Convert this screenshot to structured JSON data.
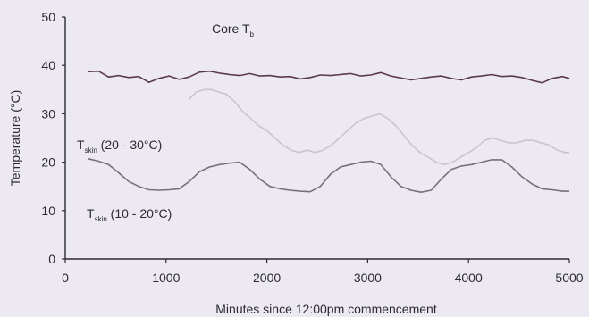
{
  "chart_data": {
    "type": "line",
    "xlabel": "Minutes since 12:00pm commencement",
    "ylabel": "Temperature (°C)",
    "xlim": [
      0,
      5000
    ],
    "ylim": [
      0,
      50
    ],
    "x_ticks": [
      "0",
      "1000",
      "2000",
      "3000",
      "4000",
      "5000"
    ],
    "y_ticks": [
      "0",
      "10",
      "20",
      "30",
      "40",
      "50"
    ],
    "grid": false,
    "legend": "none (series labelled by on-plot annotations)",
    "annotations": [
      {
        "main": "Core T",
        "sub": "b",
        "rest": ""
      },
      {
        "main": "T",
        "sub": "skin",
        "rest": " (20 - 30°C)"
      },
      {
        "main": "T",
        "sub": "skin",
        "rest": " (10 - 20°C)"
      }
    ],
    "series": [
      {
        "name": "Core Tb",
        "color": "#5a3a4a",
        "x": [
          230,
          330,
          430,
          530,
          630,
          730,
          830,
          930,
          1030,
          1130,
          1230,
          1330,
          1430,
          1530,
          1630,
          1730,
          1830,
          1930,
          2030,
          2130,
          2230,
          2330,
          2430,
          2530,
          2630,
          2730,
          2830,
          2930,
          3030,
          3130,
          3230,
          3330,
          3430,
          3530,
          3630,
          3730,
          3830,
          3930,
          4030,
          4130,
          4230,
          4330,
          4430,
          4530,
          4630,
          4730,
          4830,
          4930,
          5000
        ],
        "y": [
          38.7,
          38.8,
          37.6,
          37.9,
          37.5,
          37.7,
          36.5,
          37.3,
          37.8,
          37.1,
          37.6,
          38.6,
          38.8,
          38.4,
          38.1,
          37.9,
          38.3,
          37.8,
          37.9,
          37.6,
          37.7,
          37.2,
          37.5,
          38.0,
          37.9,
          38.1,
          38.3,
          37.8,
          38.0,
          38.5,
          37.8,
          37.4,
          37.0,
          37.3,
          37.6,
          37.8,
          37.3,
          37.0,
          37.6,
          37.8,
          38.1,
          37.7,
          37.8,
          37.5,
          36.9,
          36.4,
          37.3,
          37.7,
          37.3
        ]
      },
      {
        "name": "Tskin (20 - 30°C)",
        "color": "#c9c5cd",
        "x": [
          1230,
          1300,
          1380,
          1450,
          1520,
          1600,
          1680,
          1760,
          1840,
          1920,
          2000,
          2080,
          2160,
          2240,
          2320,
          2400,
          2480,
          2560,
          2640,
          2720,
          2800,
          2880,
          2960,
          3040,
          3120,
          3200,
          3280,
          3360,
          3440,
          3520,
          3600,
          3680,
          3760,
          3840,
          3920,
          4000,
          4080,
          4160,
          4240,
          4320,
          4400,
          4480,
          4560,
          4640,
          4720,
          4800,
          4880,
          4960,
          5000
        ],
        "y": [
          33.0,
          34.5,
          35.0,
          35.0,
          34.5,
          34.0,
          32.5,
          30.5,
          29.0,
          27.5,
          26.5,
          25.0,
          23.5,
          22.5,
          22.0,
          22.5,
          22.0,
          22.5,
          23.5,
          25.0,
          26.5,
          28.0,
          29.0,
          29.5,
          30.0,
          29.0,
          27.5,
          25.5,
          23.5,
          22.0,
          21.0,
          20.0,
          19.5,
          20.0,
          21.0,
          22.0,
          23.0,
          24.5,
          25.0,
          24.5,
          24.0,
          24.0,
          24.5,
          24.5,
          24.0,
          23.5,
          22.5,
          22.0,
          22.0
        ]
      },
      {
        "name": "Tskin (10 - 20°C)",
        "color": "#77707a",
        "x": [
          230,
          330,
          430,
          530,
          630,
          730,
          830,
          930,
          1030,
          1130,
          1230,
          1330,
          1430,
          1530,
          1630,
          1730,
          1830,
          1930,
          2030,
          2130,
          2230,
          2330,
          2430,
          2530,
          2630,
          2730,
          2830,
          2930,
          3030,
          3130,
          3230,
          3330,
          3430,
          3530,
          3630,
          3730,
          3830,
          3930,
          4030,
          4130,
          4230,
          4330,
          4430,
          4530,
          4630,
          4730,
          4830,
          4930,
          5000
        ],
        "y": [
          20.7,
          20.2,
          19.5,
          17.8,
          16.0,
          15.0,
          14.3,
          14.2,
          14.3,
          14.5,
          16.0,
          18.0,
          19.0,
          19.5,
          19.8,
          20.0,
          18.5,
          16.5,
          15.0,
          14.5,
          14.2,
          14.0,
          13.9,
          15.0,
          17.5,
          19.0,
          19.5,
          20.0,
          20.2,
          19.5,
          17.0,
          15.0,
          14.2,
          13.8,
          14.2,
          16.5,
          18.5,
          19.2,
          19.5,
          20.0,
          20.5,
          20.5,
          19.0,
          17.0,
          15.5,
          14.5,
          14.3,
          14.0,
          14.0
        ]
      }
    ]
  }
}
